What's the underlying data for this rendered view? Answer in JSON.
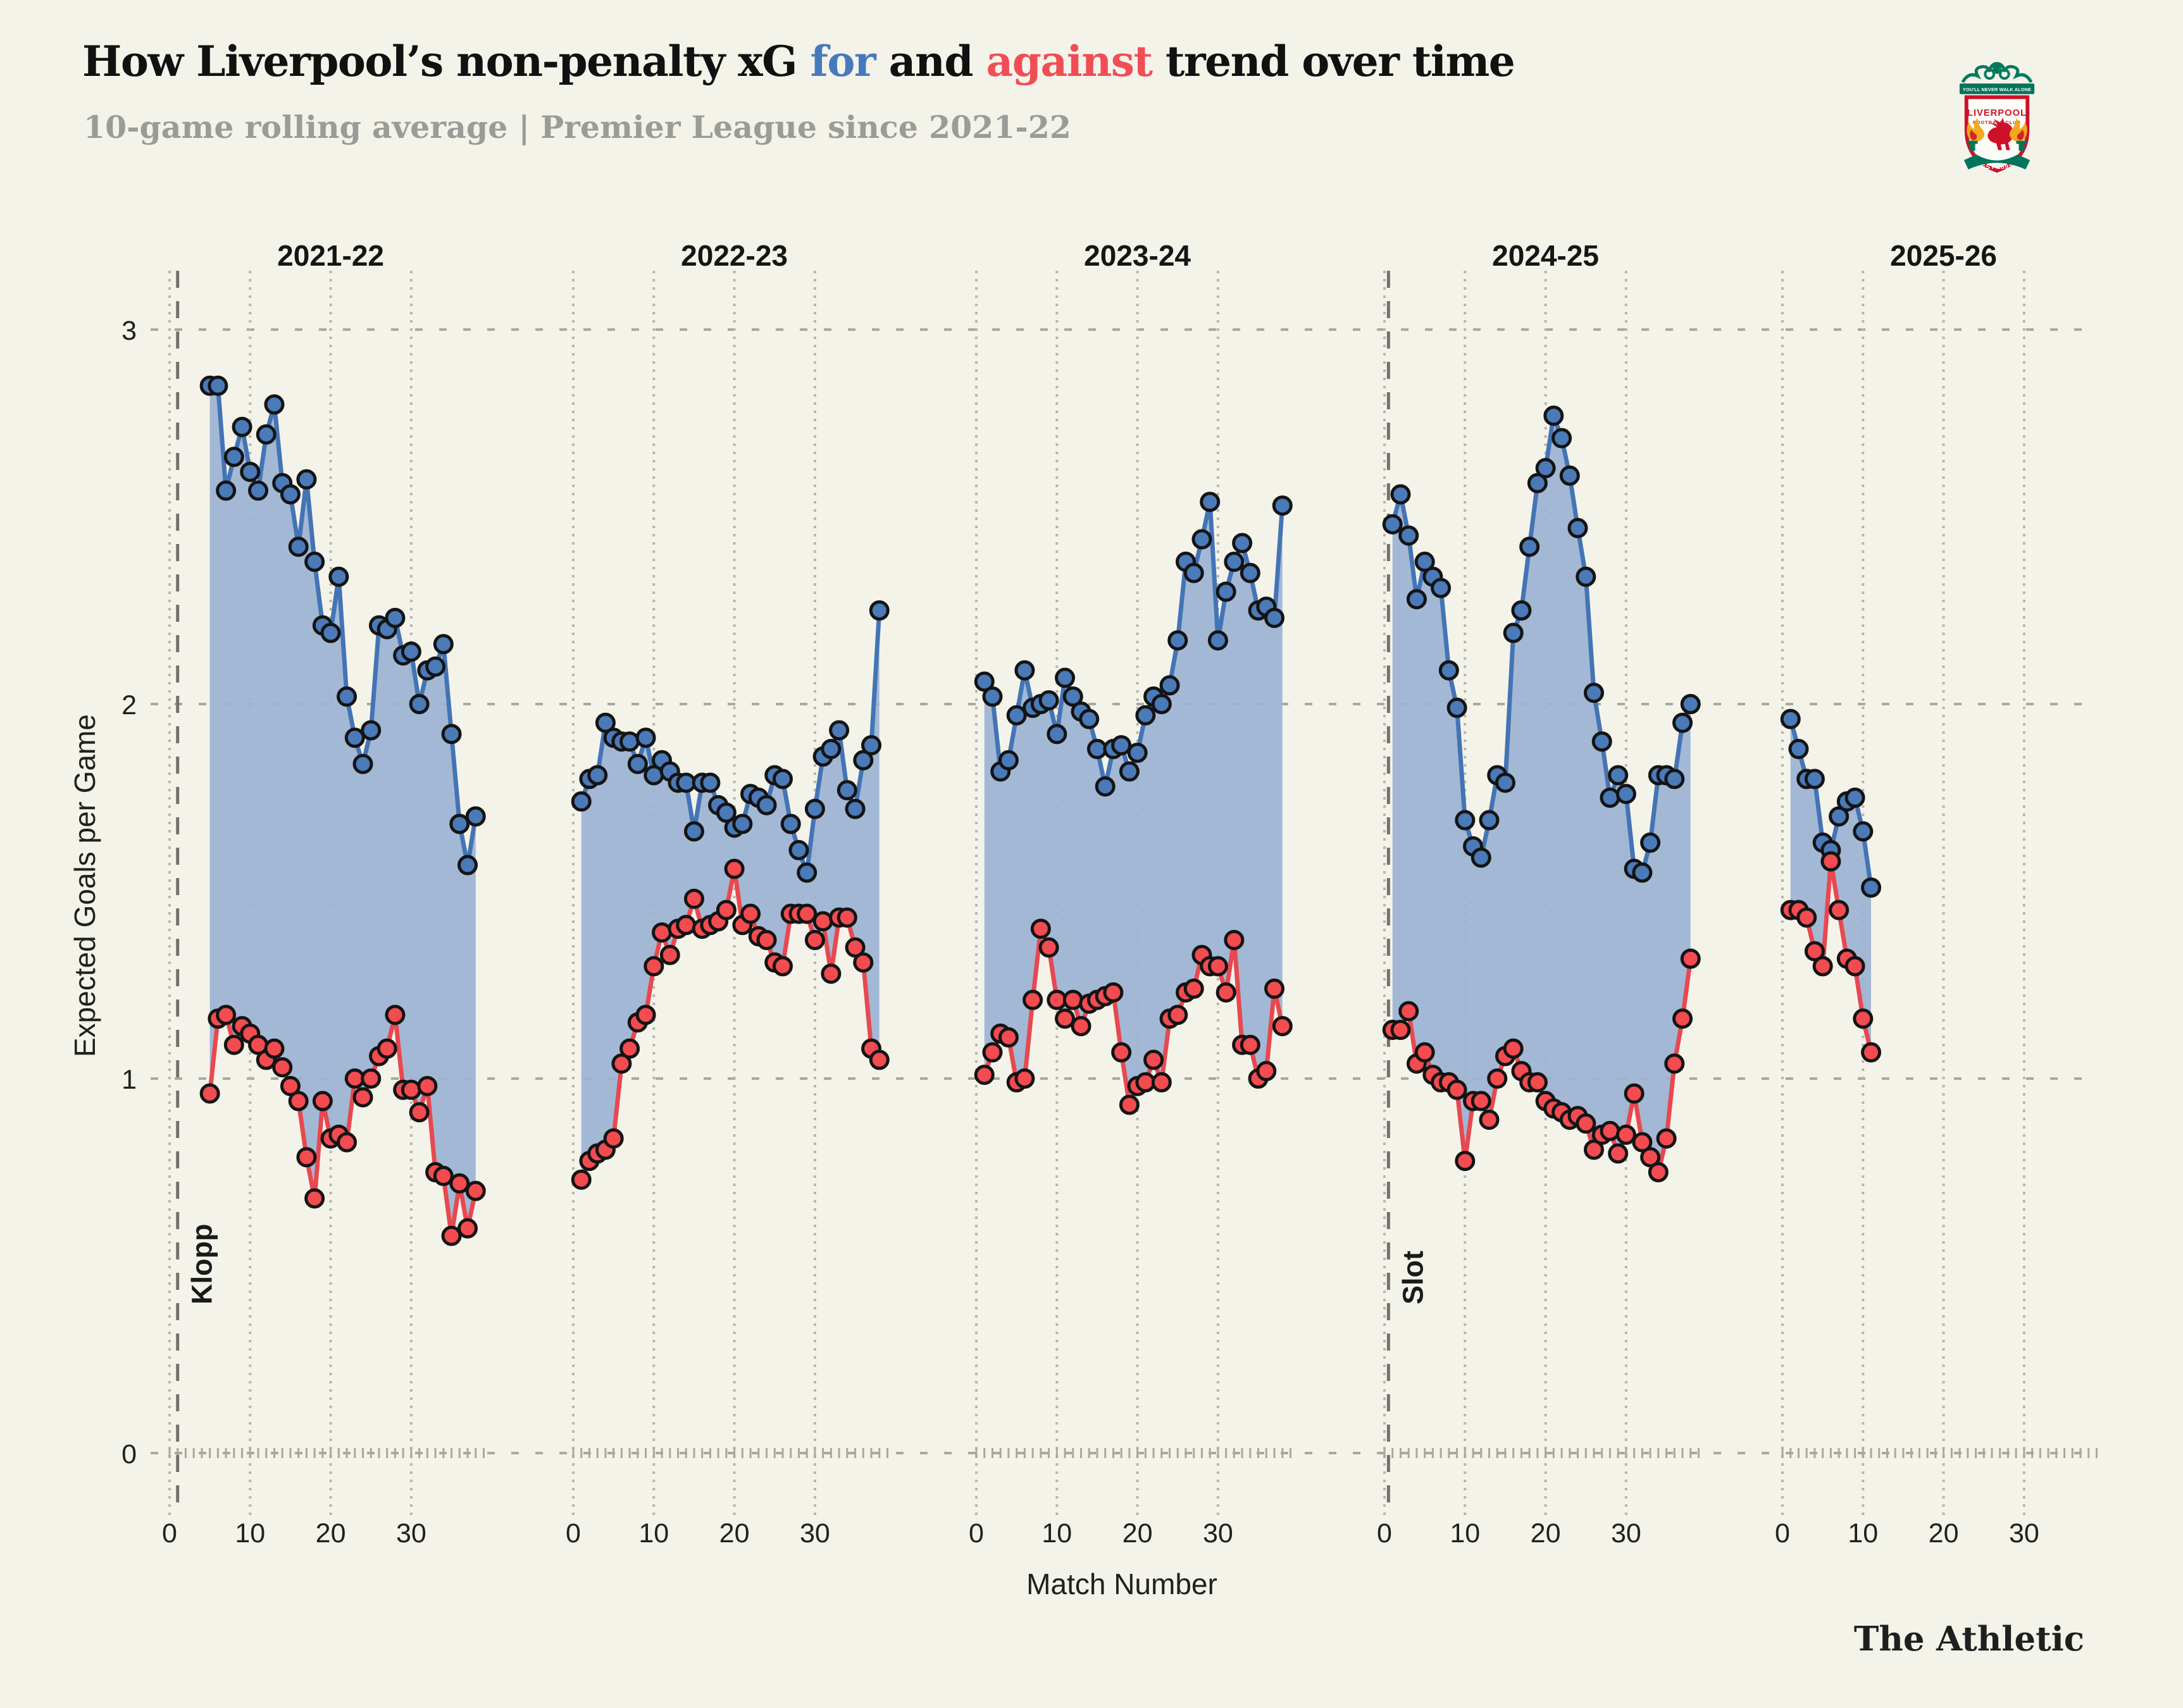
{
  "header": {
    "title_pre": "How Liverpool’s non-penalty xG ",
    "title_for": "for",
    "title_mid": " and ",
    "title_against": "against",
    "title_post": " trend over time",
    "subtitle": "10-game rolling average | Premier League since 2021-22"
  },
  "logo": {
    "motto": "YOU'LL NEVER WALK ALONE",
    "club": "LIVERPOOL",
    "club_sub": "FOOTBALL CLUB",
    "est": "EST·1892"
  },
  "footer": {
    "brand": "The Athletic"
  },
  "colors": {
    "background": "#f4f3ea",
    "for": "#4374b5",
    "against": "#e8484f",
    "for_fill": "#9cb3d3",
    "marker_for": "#4a7ab8",
    "marker_against": "#f24b50",
    "marker_stroke": "#141414",
    "grid": "#a9a8a0",
    "grid_light": "#b7b6ac",
    "manager_line": "#72716d",
    "text_dark": "#111111",
    "text_gray": "#9b9b98"
  },
  "chart_data": {
    "type": "area",
    "title": "How Liverpool’s non-penalty xG for and against trend over time",
    "subtitle": "10-game rolling average | Premier League since 2021-22",
    "xlabel": "Match Number",
    "ylabel": "Expected Goals per Game",
    "ylim": [
      0,
      3
    ],
    "yticks": [
      0,
      1,
      2,
      3
    ],
    "xticks_per_season": [
      0,
      10,
      20,
      30
    ],
    "grid": true,
    "legend": {
      "for_color": "#4374b5",
      "against_color": "#e8484f"
    },
    "annotations": [
      {
        "label": "Klopp",
        "season_index": 0,
        "match": 1
      },
      {
        "label": "Slot",
        "season_index": 3,
        "match": 0.5
      }
    ],
    "seasons": [
      {
        "label": "2021-22",
        "first_match": 5,
        "xg_for": [
          2.85,
          2.85,
          2.57,
          2.66,
          2.74,
          2.62,
          2.57,
          2.72,
          2.8,
          2.59,
          2.56,
          2.42,
          2.6,
          2.38,
          2.21,
          2.19,
          2.34,
          2.02,
          1.91,
          1.84,
          1.93,
          2.21,
          2.2,
          2.23,
          2.13,
          2.14,
          2.0,
          2.09,
          2.1,
          2.16,
          1.92,
          1.68,
          1.57,
          1.7
        ],
        "xg_against": [
          0.96,
          1.16,
          1.17,
          1.09,
          1.14,
          1.12,
          1.09,
          1.05,
          1.08,
          1.03,
          0.98,
          0.94,
          0.79,
          0.68,
          0.94,
          0.84,
          0.85,
          0.83,
          1.0,
          0.95,
          1.0,
          1.06,
          1.08,
          1.17,
          0.97,
          0.97,
          0.91,
          0.98,
          0.75,
          0.74,
          0.58,
          0.72,
          0.6,
          0.7
        ]
      },
      {
        "label": "2022-23",
        "first_match": 1,
        "xg_for": [
          1.74,
          1.8,
          1.81,
          1.95,
          1.91,
          1.9,
          1.9,
          1.84,
          1.91,
          1.81,
          1.85,
          1.82,
          1.79,
          1.79,
          1.66,
          1.79,
          1.79,
          1.73,
          1.71,
          1.67,
          1.68,
          1.76,
          1.75,
          1.73,
          1.81,
          1.8,
          1.68,
          1.61,
          1.55,
          1.72,
          1.86,
          1.88,
          1.93,
          1.77,
          1.72,
          1.85,
          1.89,
          2.25
        ],
        "xg_against": [
          0.73,
          0.78,
          0.8,
          0.81,
          0.84,
          1.04,
          1.08,
          1.15,
          1.17,
          1.3,
          1.39,
          1.33,
          1.4,
          1.41,
          1.48,
          1.4,
          1.41,
          1.42,
          1.45,
          1.56,
          1.41,
          1.44,
          1.38,
          1.37,
          1.31,
          1.3,
          1.44,
          1.44,
          1.44,
          1.37,
          1.42,
          1.28,
          1.43,
          1.43,
          1.35,
          1.31,
          1.08,
          1.05
        ]
      },
      {
        "label": "2023-24",
        "first_match": 1,
        "xg_for": [
          2.06,
          2.02,
          1.82,
          1.85,
          1.97,
          2.09,
          1.99,
          2.0,
          2.01,
          1.92,
          2.07,
          2.02,
          1.98,
          1.96,
          1.88,
          1.78,
          1.88,
          1.89,
          1.82,
          1.87,
          1.97,
          2.02,
          2.0,
          2.05,
          2.17,
          2.38,
          2.35,
          2.44,
          2.54,
          2.17,
          2.3,
          2.38,
          2.43,
          2.35,
          2.25,
          2.26,
          2.23,
          2.53
        ],
        "xg_against": [
          1.01,
          1.07,
          1.12,
          1.11,
          0.99,
          1.0,
          1.21,
          1.4,
          1.35,
          1.21,
          1.16,
          1.21,
          1.14,
          1.2,
          1.21,
          1.22,
          1.23,
          1.07,
          0.93,
          0.98,
          0.99,
          1.05,
          0.99,
          1.16,
          1.17,
          1.23,
          1.24,
          1.33,
          1.3,
          1.3,
          1.23,
          1.37,
          1.09,
          1.09,
          1.0,
          1.02,
          1.24,
          1.14
        ]
      },
      {
        "label": "2024-25",
        "first_match": 1,
        "xg_for": [
          2.48,
          2.56,
          2.45,
          2.28,
          2.38,
          2.34,
          2.31,
          2.09,
          1.99,
          1.69,
          1.62,
          1.59,
          1.69,
          1.81,
          1.79,
          2.19,
          2.25,
          2.42,
          2.59,
          2.63,
          2.77,
          2.71,
          2.61,
          2.47,
          2.34,
          2.03,
          1.9,
          1.75,
          1.81,
          1.76,
          1.56,
          1.55,
          1.63,
          1.81,
          1.81,
          1.8,
          1.95,
          2.0
        ],
        "xg_against": [
          1.13,
          1.13,
          1.18,
          1.04,
          1.07,
          1.01,
          0.99,
          0.99,
          0.97,
          0.78,
          0.94,
          0.94,
          0.89,
          1.0,
          1.06,
          1.08,
          1.02,
          0.99,
          0.99,
          0.94,
          0.92,
          0.91,
          0.89,
          0.9,
          0.88,
          0.81,
          0.85,
          0.86,
          0.8,
          0.85,
          0.96,
          0.83,
          0.79,
          0.75,
          0.84,
          1.04,
          1.16,
          1.32
        ]
      },
      {
        "label": "2025-26",
        "first_match": 1,
        "xg_for": [
          1.96,
          1.88,
          1.8,
          1.8,
          1.63,
          1.61,
          1.7,
          1.74,
          1.75,
          1.66,
          1.51
        ],
        "xg_against": [
          1.45,
          1.45,
          1.43,
          1.34,
          1.3,
          1.58,
          1.45,
          1.32,
          1.3,
          1.16,
          1.07
        ]
      }
    ]
  }
}
